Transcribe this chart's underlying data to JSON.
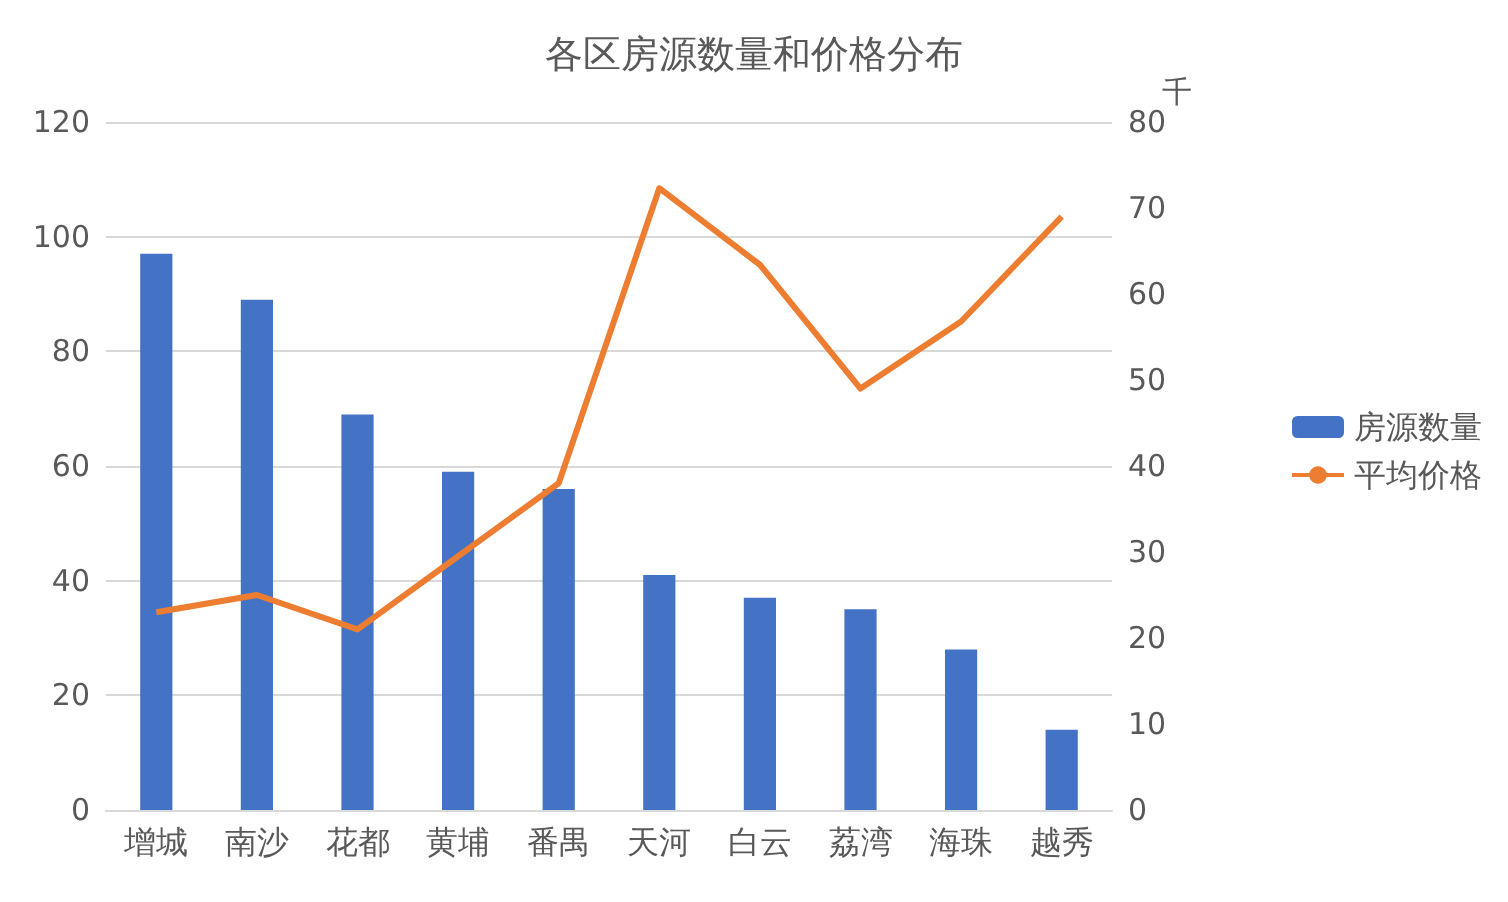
{
  "chart_data": {
    "type": "bar",
    "title": "各区房源数量和价格分布",
    "y2label": "千",
    "categories": [
      "增城",
      "南沙",
      "花都",
      "黄埔",
      "番禺",
      "天河",
      "白云",
      "荔湾",
      "海珠",
      "越秀"
    ],
    "series": [
      {
        "name": "房源数量",
        "color": "#4472c4",
        "values": [
          97,
          89,
          69,
          59,
          56,
          41,
          37,
          35,
          28,
          14
        ]
      },
      {
        "name": "平均价格",
        "type": "line",
        "axis": "y2",
        "color": "#ed7d31",
        "values": [
          23,
          25,
          21,
          29.5,
          38,
          72.3,
          63.4,
          49,
          56.8,
          69
        ]
      }
    ],
    "ylim": [
      0,
      120
    ],
    "yticks": [
      0,
      20,
      40,
      60,
      80,
      100,
      120
    ],
    "y2lim": [
      0,
      80
    ],
    "y2ticks": [
      0,
      10,
      20,
      30,
      40,
      50,
      60,
      70,
      80
    ],
    "grid": "y",
    "legend": "right",
    "marker": "none"
  }
}
